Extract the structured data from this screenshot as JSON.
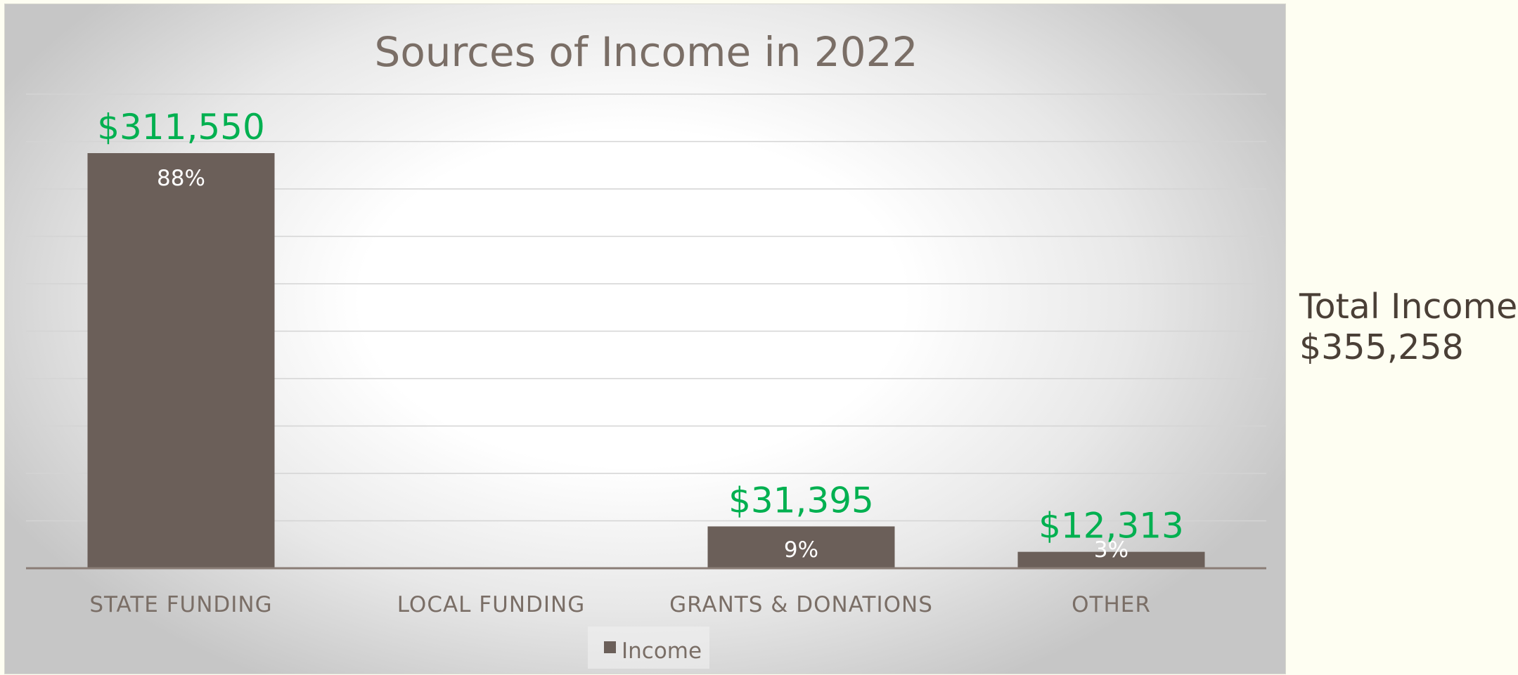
{
  "chart_data": {
    "type": "bar",
    "title": "Sources of Income in 2022",
    "categories": [
      "STATE FUNDING",
      "LOCAL FUNDING",
      "GRANTS & DONATIONS",
      "OTHER"
    ],
    "series": [
      {
        "name": "Income",
        "values": [
          311550,
          0,
          31395,
          12313
        ]
      }
    ],
    "value_labels": [
      "$311,550",
      "",
      "$31,395",
      "$12,313"
    ],
    "percent_labels": [
      "88%",
      "",
      "9%",
      "3%"
    ],
    "xlabel": "",
    "ylabel": "",
    "ylim": [
      0,
      360000
    ],
    "grid": true,
    "legend": "bottom",
    "colors": {
      "bar": "#6b5f59",
      "value_label": "#00b050",
      "percent_label": "#ffffff",
      "text": "#7a6e66",
      "gridline": "#d4d4d4",
      "axis": "#8a7d76"
    }
  },
  "total": {
    "label": "Total Income",
    "value": "$355,258"
  }
}
